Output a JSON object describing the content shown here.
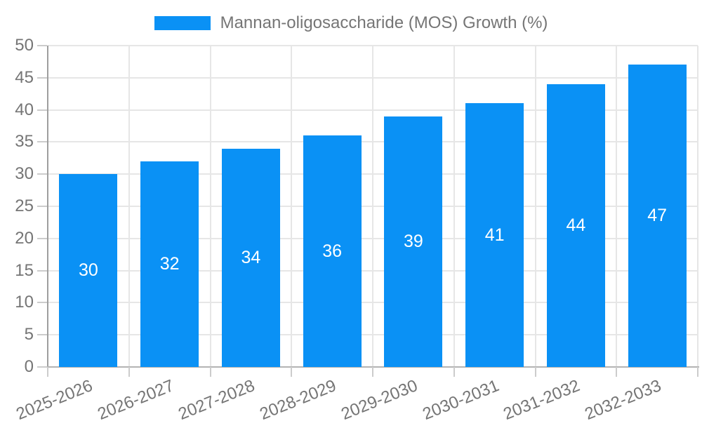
{
  "legend": {
    "label": "Mannan-oligosaccharide (MOS) Growth (%)"
  },
  "chart_data": {
    "type": "bar",
    "title": "",
    "series_name": "Mannan-oligosaccharide (MOS) Growth (%)",
    "categories": [
      "2025-2026",
      "2026-2027",
      "2027-2028",
      "2028-2029",
      "2029-2030",
      "2030-2031",
      "2031-2032",
      "2032-2033"
    ],
    "values": [
      30,
      32,
      34,
      36,
      39,
      41,
      44,
      47
    ],
    "value_labels": [
      "30",
      "32",
      "34",
      "36",
      "39",
      "41",
      "44",
      "47"
    ],
    "yticks": [
      0,
      5,
      10,
      15,
      20,
      25,
      30,
      35,
      40,
      45,
      50
    ],
    "ylim": [
      0,
      50
    ],
    "xlabel": "",
    "ylabel": "",
    "grid": "on",
    "legend_position": "top-center",
    "x_label_rotation_deg": -22,
    "colors": {
      "bar": "#0a91f5",
      "bar_value_text": "#ffffff",
      "axis_text": "#757575",
      "gridline": "#e6e6e6",
      "axis_line_y": "#9e9e9e",
      "axis_line_x": "#b3b3b3",
      "tick": "#cccccc",
      "background": "#ffffff"
    }
  }
}
